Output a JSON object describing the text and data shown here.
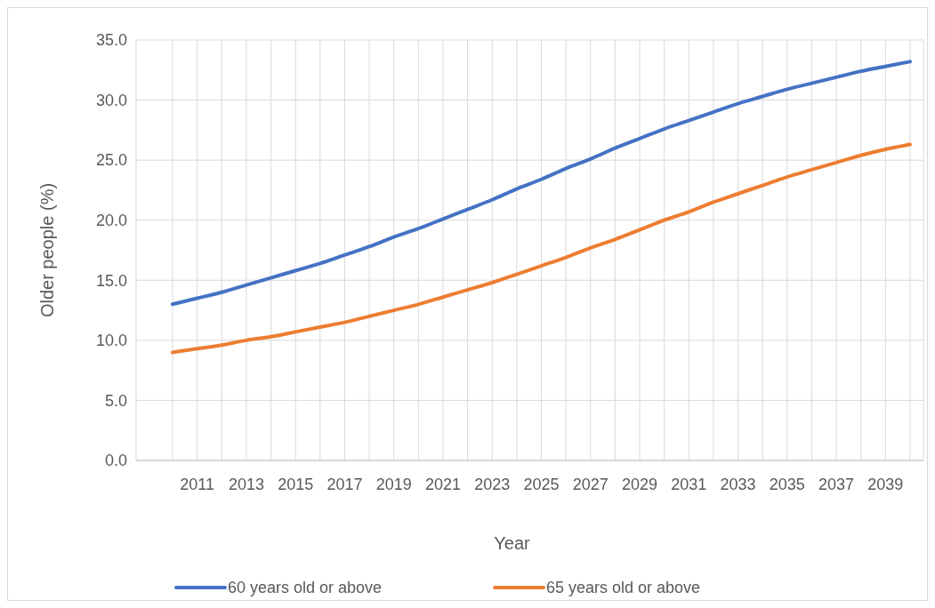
{
  "chart_data": {
    "type": "line",
    "xlabel": "Year",
    "ylabel": "Older people (%)",
    "categories": [
      null,
      "2011",
      null,
      "2013",
      null,
      "2015",
      null,
      "2017",
      null,
      "2019",
      null,
      "2021",
      null,
      "2023",
      null,
      "2025",
      null,
      "2027",
      null,
      "2029",
      null,
      "2031",
      null,
      "2033",
      null,
      "2035",
      null,
      "2037",
      null,
      "2039",
      null
    ],
    "series": [
      {
        "name": "60 years old or above",
        "color": "#4472c4",
        "values": [
          13.0,
          13.5,
          14.0,
          14.6,
          15.2,
          15.8,
          16.4,
          17.1,
          17.8,
          18.6,
          19.3,
          20.1,
          20.9,
          21.7,
          22.6,
          23.4,
          24.3,
          25.1,
          26.0,
          26.8,
          27.6,
          28.3,
          29.0,
          29.7,
          30.3,
          30.9,
          31.4,
          31.9,
          32.4,
          32.8,
          33.2
        ]
      },
      {
        "name": "65 years old or above",
        "color": "#ed7d31",
        "values": [
          9.0,
          9.3,
          9.6,
          10.0,
          10.3,
          10.7,
          11.1,
          11.5,
          12.0,
          12.5,
          13.0,
          13.6,
          14.2,
          14.8,
          15.5,
          16.2,
          16.9,
          17.7,
          18.4,
          19.2,
          20.0,
          20.7,
          21.5,
          22.2,
          22.9,
          23.6,
          24.2,
          24.8,
          25.4,
          25.9,
          26.3
        ]
      }
    ],
    "ylim": [
      0,
      35
    ],
    "yticks": [
      {
        "value": 0,
        "label": "0.0"
      },
      {
        "value": 5,
        "label": "5.0"
      },
      {
        "value": 10,
        "label": "10.0"
      },
      {
        "value": 15,
        "label": "15.0"
      },
      {
        "value": 20,
        "label": "20.0"
      },
      {
        "value": 25,
        "label": "25.0"
      },
      {
        "value": 30,
        "label": "30.0"
      },
      {
        "value": 35,
        "label": "35.0"
      }
    ],
    "grid": true,
    "legend": "bottom",
    "marker": "none",
    "line_style": "solid"
  }
}
